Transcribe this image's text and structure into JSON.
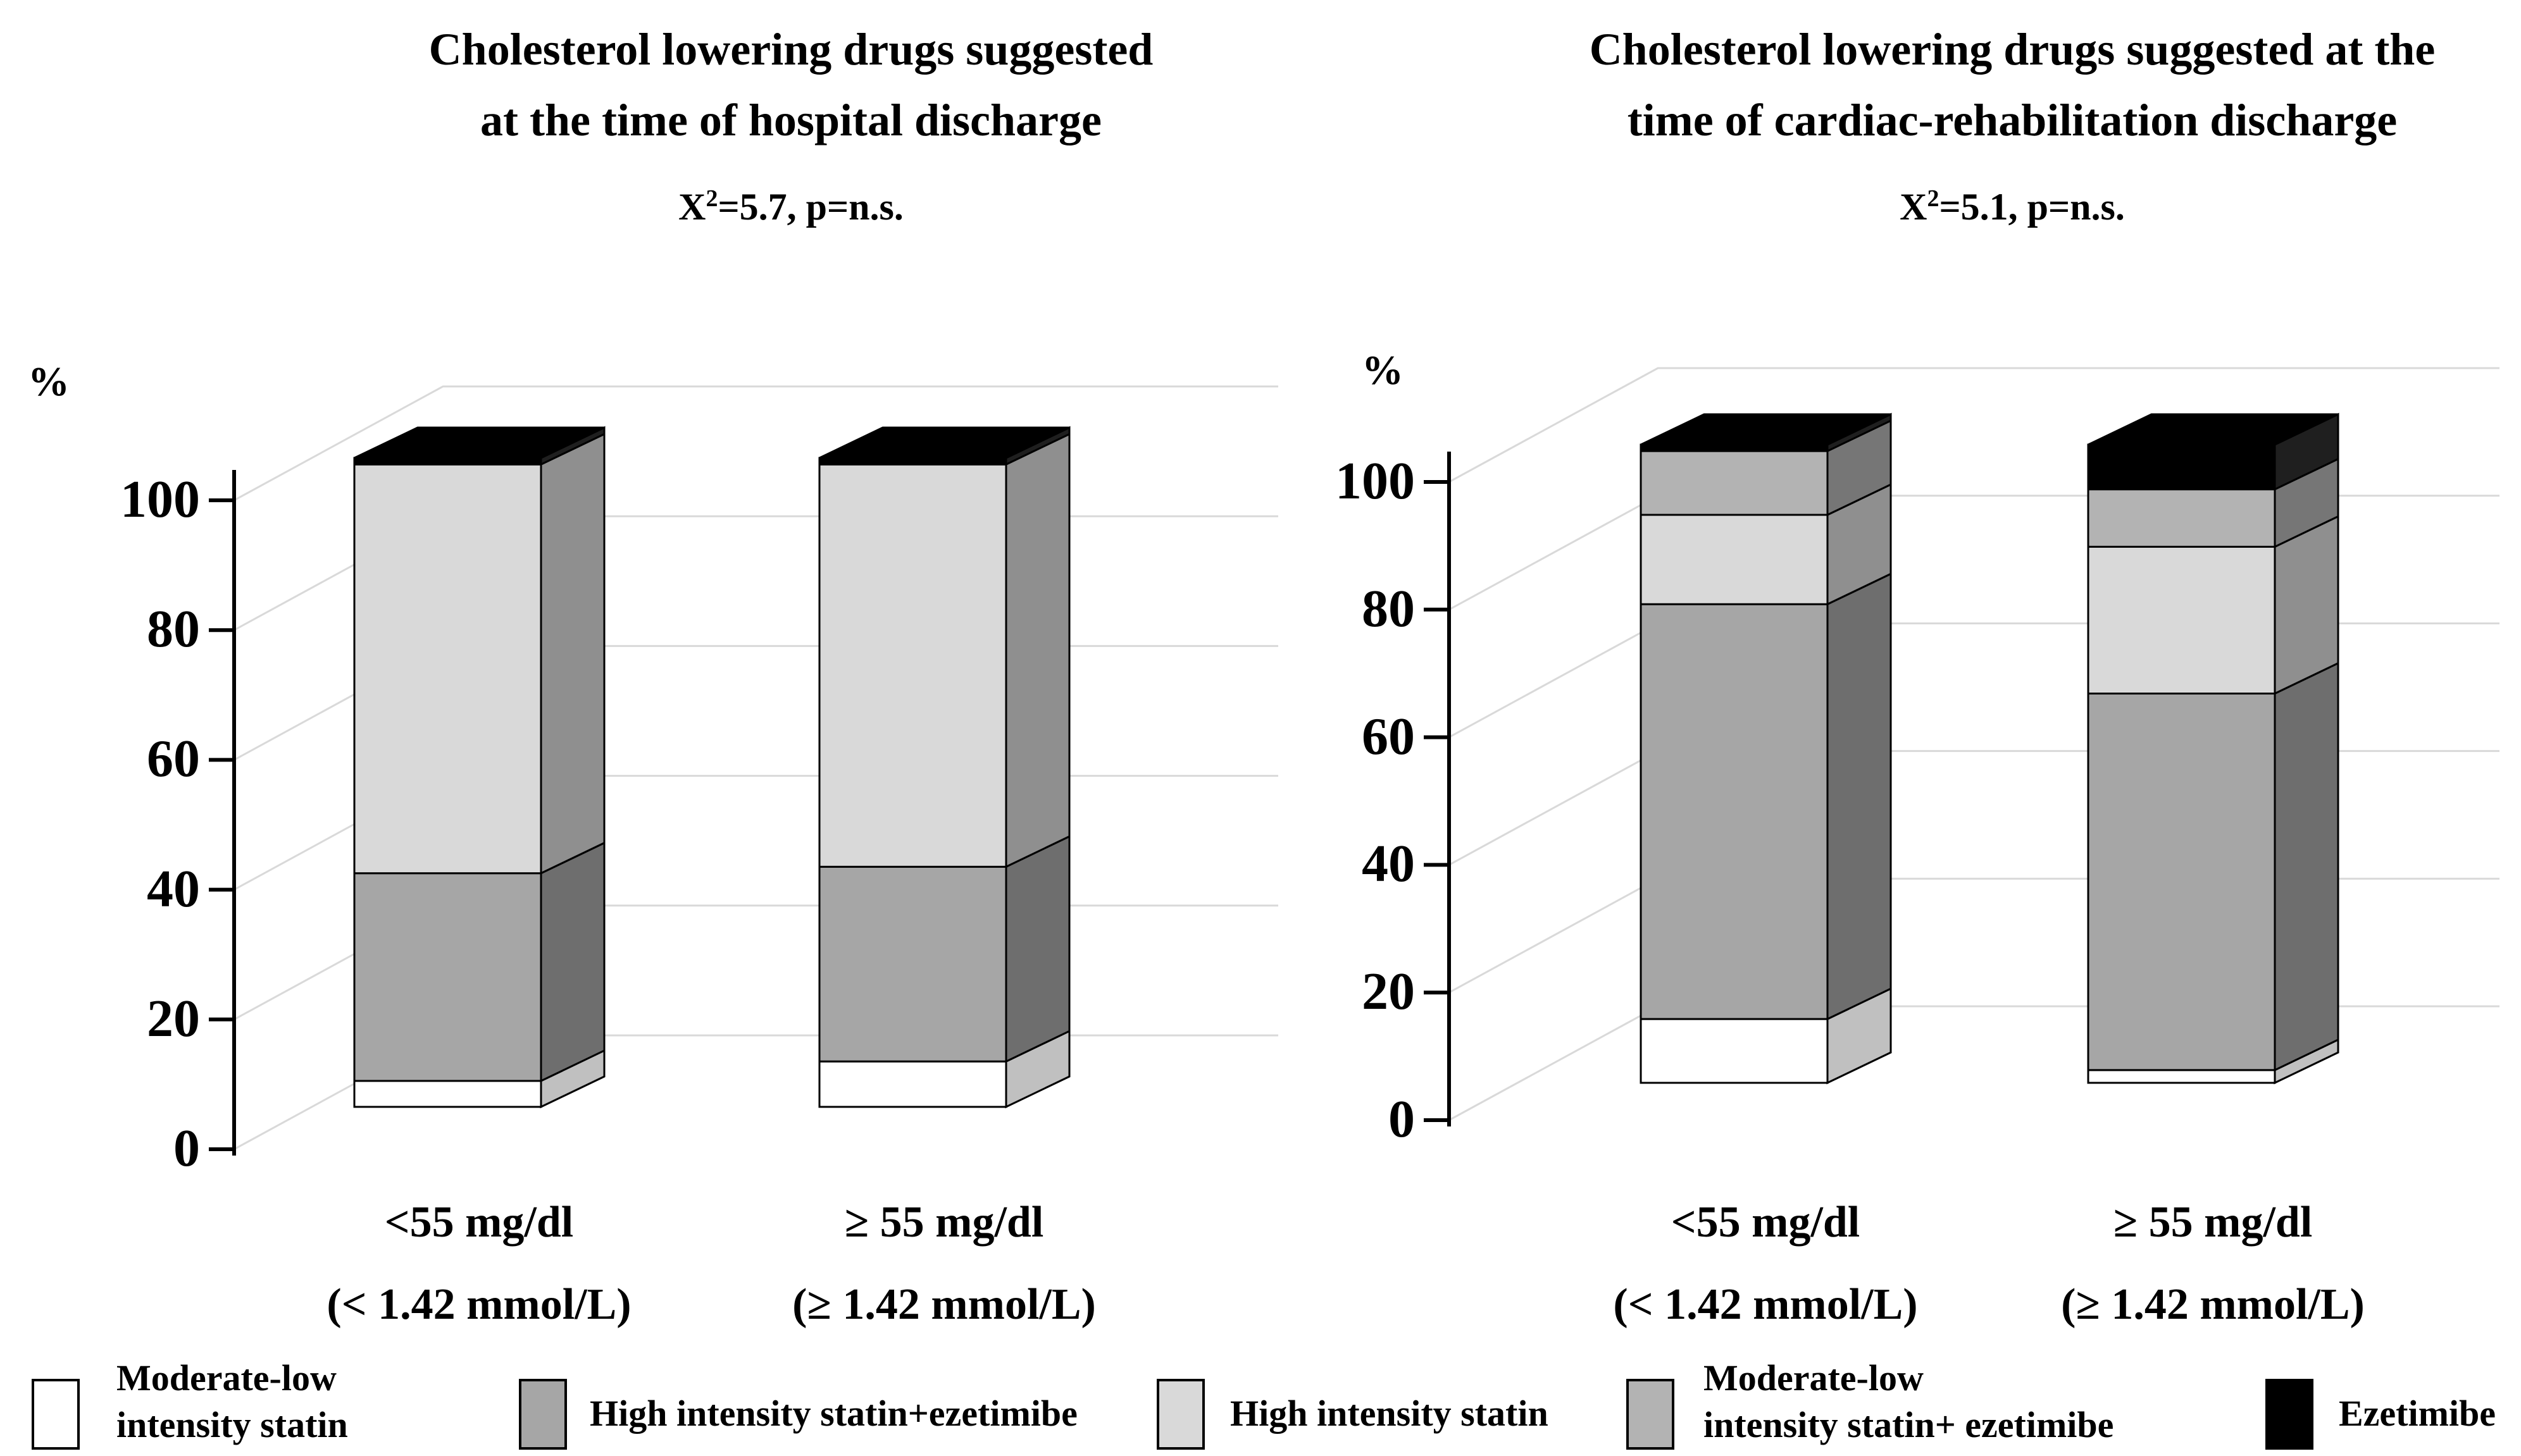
{
  "chart_data": [
    {
      "type": "bar",
      "subtype": "3d-stacked-column-100percent",
      "title": "Cholesterol lowering drugs suggested at the time of hospital discharge",
      "title_lines": [
        "Cholesterol lowering drugs suggested",
        "at the time of hospital discharge"
      ],
      "stat": {
        "base": "X",
        "sup": "2",
        "rest": "=5.7, p=n.s."
      },
      "ylabel": "%",
      "ylim": [
        0,
        100
      ],
      "yticks": [
        0,
        20,
        40,
        60,
        80,
        100
      ],
      "grid": true,
      "legend_position": "bottom",
      "categories": [
        "<55 mg/dl (< 1.42 mmol/L)",
        "≥ 55 mg/dl (≥ 1.42 mmol/L)"
      ],
      "category_labels": [
        {
          "line1": "<55 mg/dl",
          "line2": "(< 1.42 mmol/L)"
        },
        {
          "line1": "≥ 55 mg/dl",
          "line2": "(≥ 1.42 mmol/L)"
        }
      ],
      "series": [
        {
          "name": "Moderate-low intensity statin",
          "color": "#ffffff",
          "values": [
            4,
            7
          ]
        },
        {
          "name": "High intensity statin+ezetimibe",
          "color": "#a6a6a6",
          "values": [
            32,
            30
          ]
        },
        {
          "name": "High intensity statin",
          "color": "#d9d9d9",
          "values": [
            63,
            62
          ]
        },
        {
          "name": "Moderate-low intensity statin+ ezetimibe",
          "color": "#b3b3b3",
          "values": [
            0,
            0
          ]
        },
        {
          "name": "Ezetimibe",
          "color": "#000000",
          "values": [
            1,
            1
          ]
        }
      ]
    },
    {
      "type": "bar",
      "subtype": "3d-stacked-column-100percent",
      "title": "Cholesterol lowering drugs suggested at the time of cardiac-rehabilitation discharge",
      "title_lines": [
        "Cholesterol lowering drugs suggested at the",
        "time of cardiac-rehabilitation discharge"
      ],
      "stat": {
        "base": "X",
        "sup": "2",
        "rest": "=5.1, p=n.s."
      },
      "ylabel": "%",
      "ylim": [
        0,
        100
      ],
      "yticks": [
        0,
        20,
        40,
        60,
        80,
        100
      ],
      "grid": true,
      "legend_position": "bottom",
      "categories": [
        "<55 mg/dl (< 1.42 mmol/L)",
        "≥ 55 mg/dl (≥ 1.42 mmol/L)"
      ],
      "category_labels": [
        {
          "line1": "<55 mg/dl",
          "line2": "(< 1.42 mmol/L)"
        },
        {
          "line1": "≥ 55 mg/dl",
          "line2": "(≥ 1.42 mmol/L)"
        }
      ],
      "series": [
        {
          "name": "Moderate-low intensity statin",
          "color": "#ffffff",
          "values": [
            10,
            2
          ]
        },
        {
          "name": "High intensity statin+ezetimibe",
          "color": "#a6a6a6",
          "values": [
            65,
            59
          ]
        },
        {
          "name": "High intensity statin",
          "color": "#d9d9d9",
          "values": [
            14,
            23
          ]
        },
        {
          "name": "Moderate-low intensity statin+ ezetimibe",
          "color": "#b3b3b3",
          "values": [
            10,
            9
          ]
        },
        {
          "name": "Ezetimibe",
          "color": "#000000",
          "values": [
            1,
            7
          ]
        }
      ]
    }
  ],
  "legend": [
    {
      "color": "#ffffff",
      "lines": [
        "Moderate-low",
        "intensity statin"
      ]
    },
    {
      "color": "#a6a6a6",
      "lines": [
        "High intensity statin+ezetimibe"
      ]
    },
    {
      "color": "#d9d9d9",
      "lines": [
        "High intensity statin"
      ]
    },
    {
      "color": "#b3b3b3",
      "lines": [
        "Moderate-low",
        "intensity statin+ ezetimibe"
      ]
    },
    {
      "color": "#000000",
      "lines": [
        "Ezetimibe"
      ]
    }
  ]
}
